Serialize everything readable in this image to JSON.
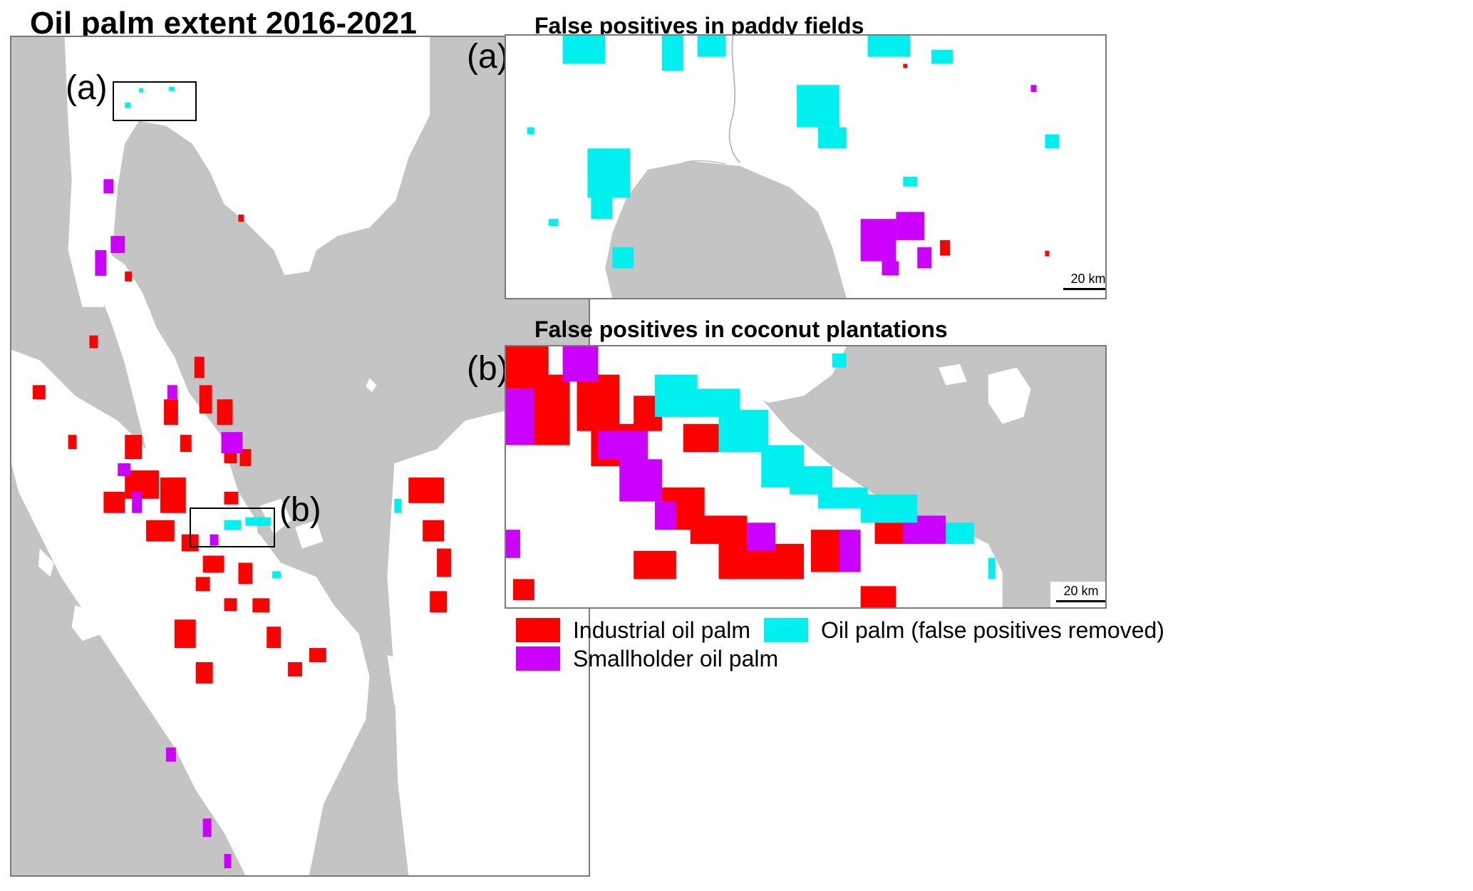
{
  "title": "Oil palm extent 2016-2021",
  "overview": {
    "inset_a_label": "(a)",
    "inset_b_label": "(b)"
  },
  "panel_a": {
    "letter": "(a)",
    "title": "False positives in paddy fields",
    "scale_label": "20 km"
  },
  "panel_b": {
    "letter": "(b)",
    "title": "False positives in coconut plantations",
    "scale_label": "20 km"
  },
  "legend": {
    "industrial": {
      "label": "Industrial oil palm",
      "color": "#ff0000"
    },
    "smallholder": {
      "label": "Smallholder oil palm",
      "color": "#cc00ff"
    },
    "false_positive": {
      "label": "Oil palm (false positives removed)",
      "color": "#00f0f0"
    }
  },
  "colors": {
    "water": "#c4c4c4",
    "land": "#ffffff"
  }
}
